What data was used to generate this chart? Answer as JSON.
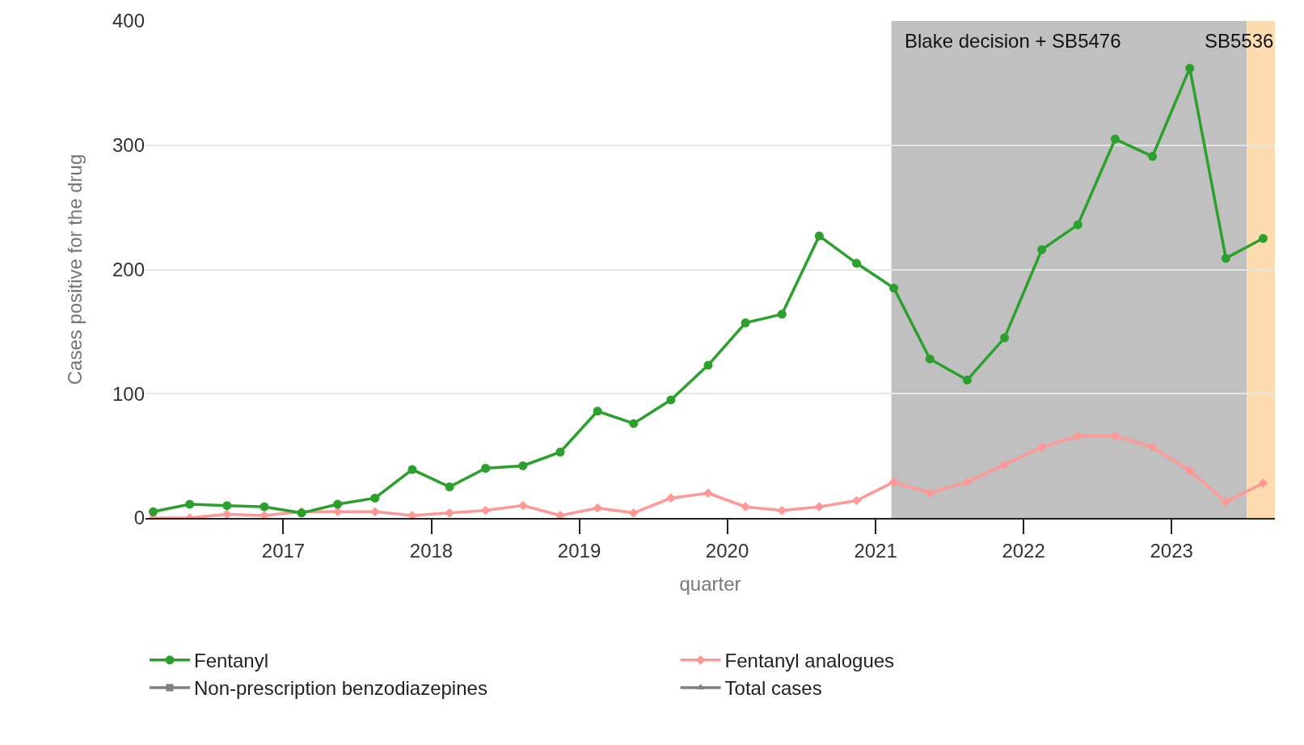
{
  "chart_data": {
    "type": "line",
    "xlabel": "quarter",
    "ylabel": "Cases positive for the drug",
    "x": [
      "2016-02-15",
      "2016-05-15",
      "2016-08-15",
      "2016-11-15",
      "2017-02-15",
      "2017-05-15",
      "2017-08-15",
      "2017-11-15",
      "2018-02-15",
      "2018-05-15",
      "2018-08-15",
      "2018-11-15",
      "2019-02-15",
      "2019-05-15",
      "2019-08-15",
      "2019-11-15",
      "2020-02-15",
      "2020-05-15",
      "2020-08-15",
      "2020-11-15",
      "2021-02-15",
      "2021-05-15",
      "2021-08-15",
      "2021-11-15",
      "2022-02-15",
      "2022-05-15",
      "2022-08-15",
      "2022-11-15",
      "2023-02-15",
      "2023-05-15",
      "2023-08-15"
    ],
    "series": [
      {
        "name": "Fentanyl",
        "color": "#2ca02c",
        "marker": "circle",
        "values": [
          5,
          11,
          10,
          9,
          4,
          11,
          16,
          39,
          25,
          40,
          42,
          53,
          86,
          76,
          95,
          123,
          157,
          164,
          227,
          205,
          185,
          128,
          111,
          145,
          216,
          236,
          305,
          291,
          362,
          209,
          225
        ]
      },
      {
        "name": "Fentanyl analogues",
        "color": "#ff9896",
        "marker": "diamond",
        "values": [
          0,
          0,
          3,
          2,
          5,
          5,
          5,
          2,
          4,
          6,
          10,
          2,
          8,
          4,
          16,
          20,
          9,
          6,
          9,
          14,
          29,
          20,
          29,
          43,
          57,
          66,
          66,
          57,
          38,
          13,
          28
        ]
      },
      {
        "name": "Non-prescription benzodiazepines",
        "color": "#7f7f7f",
        "marker": "square",
        "values": [
          null,
          null,
          null,
          null,
          null,
          null,
          null,
          null,
          null,
          null,
          null,
          null,
          null,
          null,
          null,
          null,
          null,
          null,
          null,
          null,
          null,
          null,
          null,
          null,
          null,
          null,
          null,
          null,
          null,
          null,
          null
        ]
      },
      {
        "name": "Total cases",
        "color": "#7f7f7f",
        "marker": "triangle",
        "values": [
          null,
          null,
          null,
          null,
          null,
          null,
          null,
          null,
          null,
          null,
          null,
          null,
          null,
          null,
          null,
          null,
          null,
          null,
          null,
          null,
          null,
          null,
          null,
          null,
          null,
          null,
          null,
          null,
          null,
          null,
          null
        ]
      }
    ],
    "xlim": [
      "2016-01-27",
      "2023-09-13"
    ],
    "xticks": [
      {
        "value": "2017-01-01",
        "label": "2017"
      },
      {
        "value": "2018-01-01",
        "label": "2018"
      },
      {
        "value": "2019-01-01",
        "label": "2019"
      },
      {
        "value": "2020-01-01",
        "label": "2020"
      },
      {
        "value": "2021-01-01",
        "label": "2021"
      },
      {
        "value": "2022-01-01",
        "label": "2022"
      },
      {
        "value": "2023-01-01",
        "label": "2023"
      }
    ],
    "ylim": [
      0,
      400
    ],
    "yticks": [
      0,
      100,
      200,
      300,
      400
    ],
    "bands": [
      {
        "axis": "x",
        "from": "2021-02-09",
        "to": "2023-07-06",
        "label": "Blake decision + SB5476",
        "color": "#c0c0c0"
      },
      {
        "axis": "x",
        "from": "2023-07-06",
        "to": "2023-09-13",
        "label": "SB5536",
        "color": "#fddcb0"
      }
    ],
    "grid": "y",
    "legend": "bottom",
    "line_style": "solid"
  }
}
